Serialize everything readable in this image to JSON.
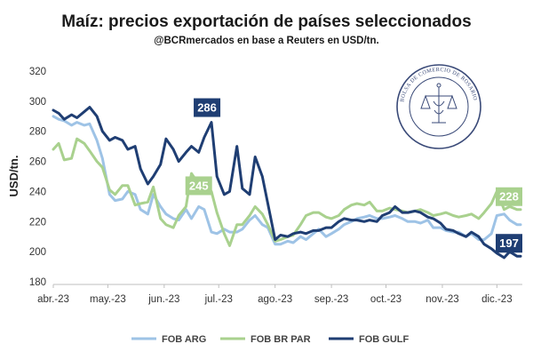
{
  "chart_data": {
    "type": "line",
    "title": "Maíz: precios exportación de países seleccionados",
    "subtitle": "@BCRmercados en base a Reuters en USD/tn.",
    "ylabel": "USD/tn.",
    "ylim": [
      180,
      320
    ],
    "yticks": [
      180,
      200,
      220,
      240,
      260,
      280,
      300,
      320
    ],
    "xlim": [
      "2023-04-01",
      "2023-12-15"
    ],
    "xticks": [
      {
        "date": "2023-04-01",
        "label": "abr.-23"
      },
      {
        "date": "2023-05-01",
        "label": "may.-23"
      },
      {
        "date": "2023-06-01",
        "label": "jun.-23"
      },
      {
        "date": "2023-07-01",
        "label": "jul.-23"
      },
      {
        "date": "2023-08-01",
        "label": "ago.-23"
      },
      {
        "date": "2023-09-01",
        "label": "sep.-23"
      },
      {
        "date": "2023-10-01",
        "label": "oct.-23"
      },
      {
        "date": "2023-11-01",
        "label": "nov.-23"
      },
      {
        "date": "2023-12-01",
        "label": "dic.-23"
      }
    ],
    "grid": false,
    "legend_position": "bottom",
    "series": [
      {
        "name": "FOB ARG",
        "color": "#9ec3e6",
        "points": [
          [
            "2023-04-01",
            290
          ],
          [
            "2023-04-04",
            288
          ],
          [
            "2023-04-07",
            287
          ],
          [
            "2023-04-11",
            284
          ],
          [
            "2023-04-14",
            286
          ],
          [
            "2023-04-18",
            284
          ],
          [
            "2023-04-21",
            285
          ],
          [
            "2023-04-25",
            274
          ],
          [
            "2023-04-28",
            262
          ],
          [
            "2023-05-02",
            238
          ],
          [
            "2023-05-05",
            234
          ],
          [
            "2023-05-09",
            235
          ],
          [
            "2023-05-12",
            240
          ],
          [
            "2023-05-16",
            238
          ],
          [
            "2023-05-19",
            228
          ],
          [
            "2023-05-23",
            225
          ],
          [
            "2023-05-26",
            238
          ],
          [
            "2023-05-30",
            230
          ],
          [
            "2023-06-02",
            225
          ],
          [
            "2023-06-06",
            222
          ],
          [
            "2023-06-09",
            221
          ],
          [
            "2023-06-13",
            228
          ],
          [
            "2023-06-16",
            222
          ],
          [
            "2023-06-20",
            230
          ],
          [
            "2023-06-23",
            228
          ],
          [
            "2023-06-27",
            213
          ],
          [
            "2023-06-30",
            212
          ],
          [
            "2023-07-04",
            215
          ],
          [
            "2023-07-07",
            213
          ],
          [
            "2023-07-11",
            213
          ],
          [
            "2023-07-14",
            215
          ],
          [
            "2023-07-18",
            221
          ],
          [
            "2023-07-21",
            224
          ],
          [
            "2023-07-25",
            218
          ],
          [
            "2023-07-28",
            216
          ],
          [
            "2023-08-01",
            205
          ],
          [
            "2023-08-04",
            205
          ],
          [
            "2023-08-08",
            207
          ],
          [
            "2023-08-11",
            206
          ],
          [
            "2023-08-15",
            210
          ],
          [
            "2023-08-18",
            208
          ],
          [
            "2023-08-22",
            212
          ],
          [
            "2023-08-25",
            215
          ],
          [
            "2023-08-29",
            210
          ],
          [
            "2023-09-01",
            212
          ],
          [
            "2023-09-05",
            215
          ],
          [
            "2023-09-08",
            218
          ],
          [
            "2023-09-12",
            220
          ],
          [
            "2023-09-15",
            222
          ],
          [
            "2023-09-19",
            223
          ],
          [
            "2023-09-22",
            224
          ],
          [
            "2023-09-26",
            222
          ],
          [
            "2023-09-29",
            222
          ],
          [
            "2023-10-03",
            223
          ],
          [
            "2023-10-06",
            224
          ],
          [
            "2023-10-10",
            222
          ],
          [
            "2023-10-13",
            220
          ],
          [
            "2023-10-17",
            220
          ],
          [
            "2023-10-20",
            219
          ],
          [
            "2023-10-24",
            221
          ],
          [
            "2023-10-27",
            216
          ],
          [
            "2023-10-31",
            216
          ],
          [
            "2023-11-03",
            214
          ],
          [
            "2023-11-07",
            213
          ],
          [
            "2023-11-10",
            213
          ],
          [
            "2023-11-14",
            210
          ],
          [
            "2023-11-17",
            212
          ],
          [
            "2023-11-21",
            208
          ],
          [
            "2023-11-24",
            208
          ],
          [
            "2023-11-28",
            212
          ],
          [
            "2023-12-01",
            224
          ],
          [
            "2023-12-05",
            225
          ],
          [
            "2023-12-08",
            221
          ],
          [
            "2023-12-12",
            218
          ],
          [
            "2023-12-14",
            218
          ]
        ]
      },
      {
        "name": "FOB BR PAR",
        "color": "#a9d18e",
        "points": [
          [
            "2023-04-01",
            268
          ],
          [
            "2023-04-04",
            272
          ],
          [
            "2023-04-07",
            261
          ],
          [
            "2023-04-11",
            262
          ],
          [
            "2023-04-14",
            275
          ],
          [
            "2023-04-18",
            272
          ],
          [
            "2023-04-21",
            267
          ],
          [
            "2023-04-25",
            260
          ],
          [
            "2023-04-28",
            256
          ],
          [
            "2023-05-02",
            241
          ],
          [
            "2023-05-05",
            238
          ],
          [
            "2023-05-09",
            244
          ],
          [
            "2023-05-12",
            244
          ],
          [
            "2023-05-16",
            231
          ],
          [
            "2023-05-19",
            232
          ],
          [
            "2023-05-23",
            233
          ],
          [
            "2023-05-26",
            243
          ],
          [
            "2023-05-30",
            222
          ],
          [
            "2023-06-02",
            218
          ],
          [
            "2023-06-06",
            216
          ],
          [
            "2023-06-09",
            224
          ],
          [
            "2023-06-13",
            230
          ],
          [
            "2023-06-16",
            252
          ],
          [
            "2023-06-20",
            245
          ],
          [
            "2023-06-23",
            246
          ],
          [
            "2023-06-27",
            240
          ],
          [
            "2023-06-30",
            226
          ],
          [
            "2023-07-04",
            212
          ],
          [
            "2023-07-07",
            204
          ],
          [
            "2023-07-11",
            218
          ],
          [
            "2023-07-14",
            218
          ],
          [
            "2023-07-18",
            224
          ],
          [
            "2023-07-21",
            230
          ],
          [
            "2023-07-25",
            225
          ],
          [
            "2023-07-28",
            218
          ],
          [
            "2023-08-01",
            207
          ],
          [
            "2023-08-04",
            208
          ],
          [
            "2023-08-08",
            210
          ],
          [
            "2023-08-11",
            211
          ],
          [
            "2023-08-15",
            218
          ],
          [
            "2023-08-18",
            224
          ],
          [
            "2023-08-22",
            226
          ],
          [
            "2023-08-25",
            226
          ],
          [
            "2023-08-29",
            223
          ],
          [
            "2023-09-01",
            222
          ],
          [
            "2023-09-05",
            224
          ],
          [
            "2023-09-08",
            228
          ],
          [
            "2023-09-12",
            231
          ],
          [
            "2023-09-15",
            232
          ],
          [
            "2023-09-19",
            231
          ],
          [
            "2023-09-22",
            233
          ],
          [
            "2023-09-26",
            227
          ],
          [
            "2023-09-29",
            227
          ],
          [
            "2023-10-03",
            229
          ],
          [
            "2023-10-06",
            228
          ],
          [
            "2023-10-10",
            227
          ],
          [
            "2023-10-13",
            226
          ],
          [
            "2023-10-17",
            227
          ],
          [
            "2023-10-20",
            228
          ],
          [
            "2023-10-24",
            226
          ],
          [
            "2023-10-27",
            224
          ],
          [
            "2023-10-31",
            225
          ],
          [
            "2023-11-03",
            226
          ],
          [
            "2023-11-07",
            224
          ],
          [
            "2023-11-10",
            223
          ],
          [
            "2023-11-14",
            224
          ],
          [
            "2023-11-17",
            225
          ],
          [
            "2023-11-21",
            222
          ],
          [
            "2023-11-24",
            226
          ],
          [
            "2023-11-28",
            232
          ],
          [
            "2023-12-01",
            240
          ],
          [
            "2023-12-05",
            228
          ],
          [
            "2023-12-08",
            230
          ],
          [
            "2023-12-12",
            228
          ],
          [
            "2023-12-14",
            228
          ]
        ]
      },
      {
        "name": "FOB GULF",
        "color": "#1f3e73",
        "points": [
          [
            "2023-04-01",
            294
          ],
          [
            "2023-04-04",
            292
          ],
          [
            "2023-04-07",
            288
          ],
          [
            "2023-04-11",
            291
          ],
          [
            "2023-04-14",
            289
          ],
          [
            "2023-04-18",
            293
          ],
          [
            "2023-04-21",
            296
          ],
          [
            "2023-04-25",
            290
          ],
          [
            "2023-04-28",
            280
          ],
          [
            "2023-05-02",
            274
          ],
          [
            "2023-05-05",
            276
          ],
          [
            "2023-05-09",
            274
          ],
          [
            "2023-05-12",
            268
          ],
          [
            "2023-05-16",
            270
          ],
          [
            "2023-05-19",
            255
          ],
          [
            "2023-05-23",
            245
          ],
          [
            "2023-05-26",
            250
          ],
          [
            "2023-05-30",
            258
          ],
          [
            "2023-06-02",
            275
          ],
          [
            "2023-06-06",
            268
          ],
          [
            "2023-06-09",
            260
          ],
          [
            "2023-06-13",
            266
          ],
          [
            "2023-06-16",
            270
          ],
          [
            "2023-06-20",
            266
          ],
          [
            "2023-06-23",
            276
          ],
          [
            "2023-06-27",
            286
          ],
          [
            "2023-06-30",
            250
          ],
          [
            "2023-07-04",
            238
          ],
          [
            "2023-07-07",
            240
          ],
          [
            "2023-07-11",
            270
          ],
          [
            "2023-07-14",
            242
          ],
          [
            "2023-07-18",
            238
          ],
          [
            "2023-07-21",
            263
          ],
          [
            "2023-07-25",
            250
          ],
          [
            "2023-07-28",
            232
          ],
          [
            "2023-08-01",
            208
          ],
          [
            "2023-08-04",
            211
          ],
          [
            "2023-08-08",
            210
          ],
          [
            "2023-08-11",
            212
          ],
          [
            "2023-08-15",
            213
          ],
          [
            "2023-08-18",
            212
          ],
          [
            "2023-08-22",
            214
          ],
          [
            "2023-08-25",
            214
          ],
          [
            "2023-08-29",
            216
          ],
          [
            "2023-09-01",
            216
          ],
          [
            "2023-09-05",
            220
          ],
          [
            "2023-09-08",
            222
          ],
          [
            "2023-09-12",
            221
          ],
          [
            "2023-09-15",
            221
          ],
          [
            "2023-09-19",
            220
          ],
          [
            "2023-09-22",
            221
          ],
          [
            "2023-09-26",
            220
          ],
          [
            "2023-09-29",
            224
          ],
          [
            "2023-10-03",
            226
          ],
          [
            "2023-10-06",
            230
          ],
          [
            "2023-10-10",
            226
          ],
          [
            "2023-10-13",
            226
          ],
          [
            "2023-10-17",
            227
          ],
          [
            "2023-10-20",
            226
          ],
          [
            "2023-10-24",
            223
          ],
          [
            "2023-10-27",
            222
          ],
          [
            "2023-10-31",
            219
          ],
          [
            "2023-11-03",
            215
          ],
          [
            "2023-11-07",
            214
          ],
          [
            "2023-11-10",
            212
          ],
          [
            "2023-11-14",
            210
          ],
          [
            "2023-11-17",
            213
          ],
          [
            "2023-11-21",
            210
          ],
          [
            "2023-11-24",
            205
          ],
          [
            "2023-11-28",
            202
          ],
          [
            "2023-12-01",
            199
          ],
          [
            "2023-12-05",
            196
          ],
          [
            "2023-12-08",
            200
          ],
          [
            "2023-12-12",
            197
          ],
          [
            "2023-12-14",
            197
          ]
        ]
      }
    ],
    "annotations": [
      {
        "text": "286",
        "date": "2023-06-27",
        "value": 286,
        "color": "#1f3e73"
      },
      {
        "text": "245",
        "date": "2023-06-20",
        "value": 245,
        "color": "#a9d18e"
      },
      {
        "text": "228",
        "date": "2023-12-14",
        "value": 228,
        "color": "#a9d18e"
      },
      {
        "text": "197",
        "date": "2023-12-14",
        "value": 197,
        "color": "#1f3e73"
      }
    ],
    "logo": {
      "text": "BOLSA DE COMERCIO DE ROSARIO",
      "color": "#3a4a78"
    }
  }
}
